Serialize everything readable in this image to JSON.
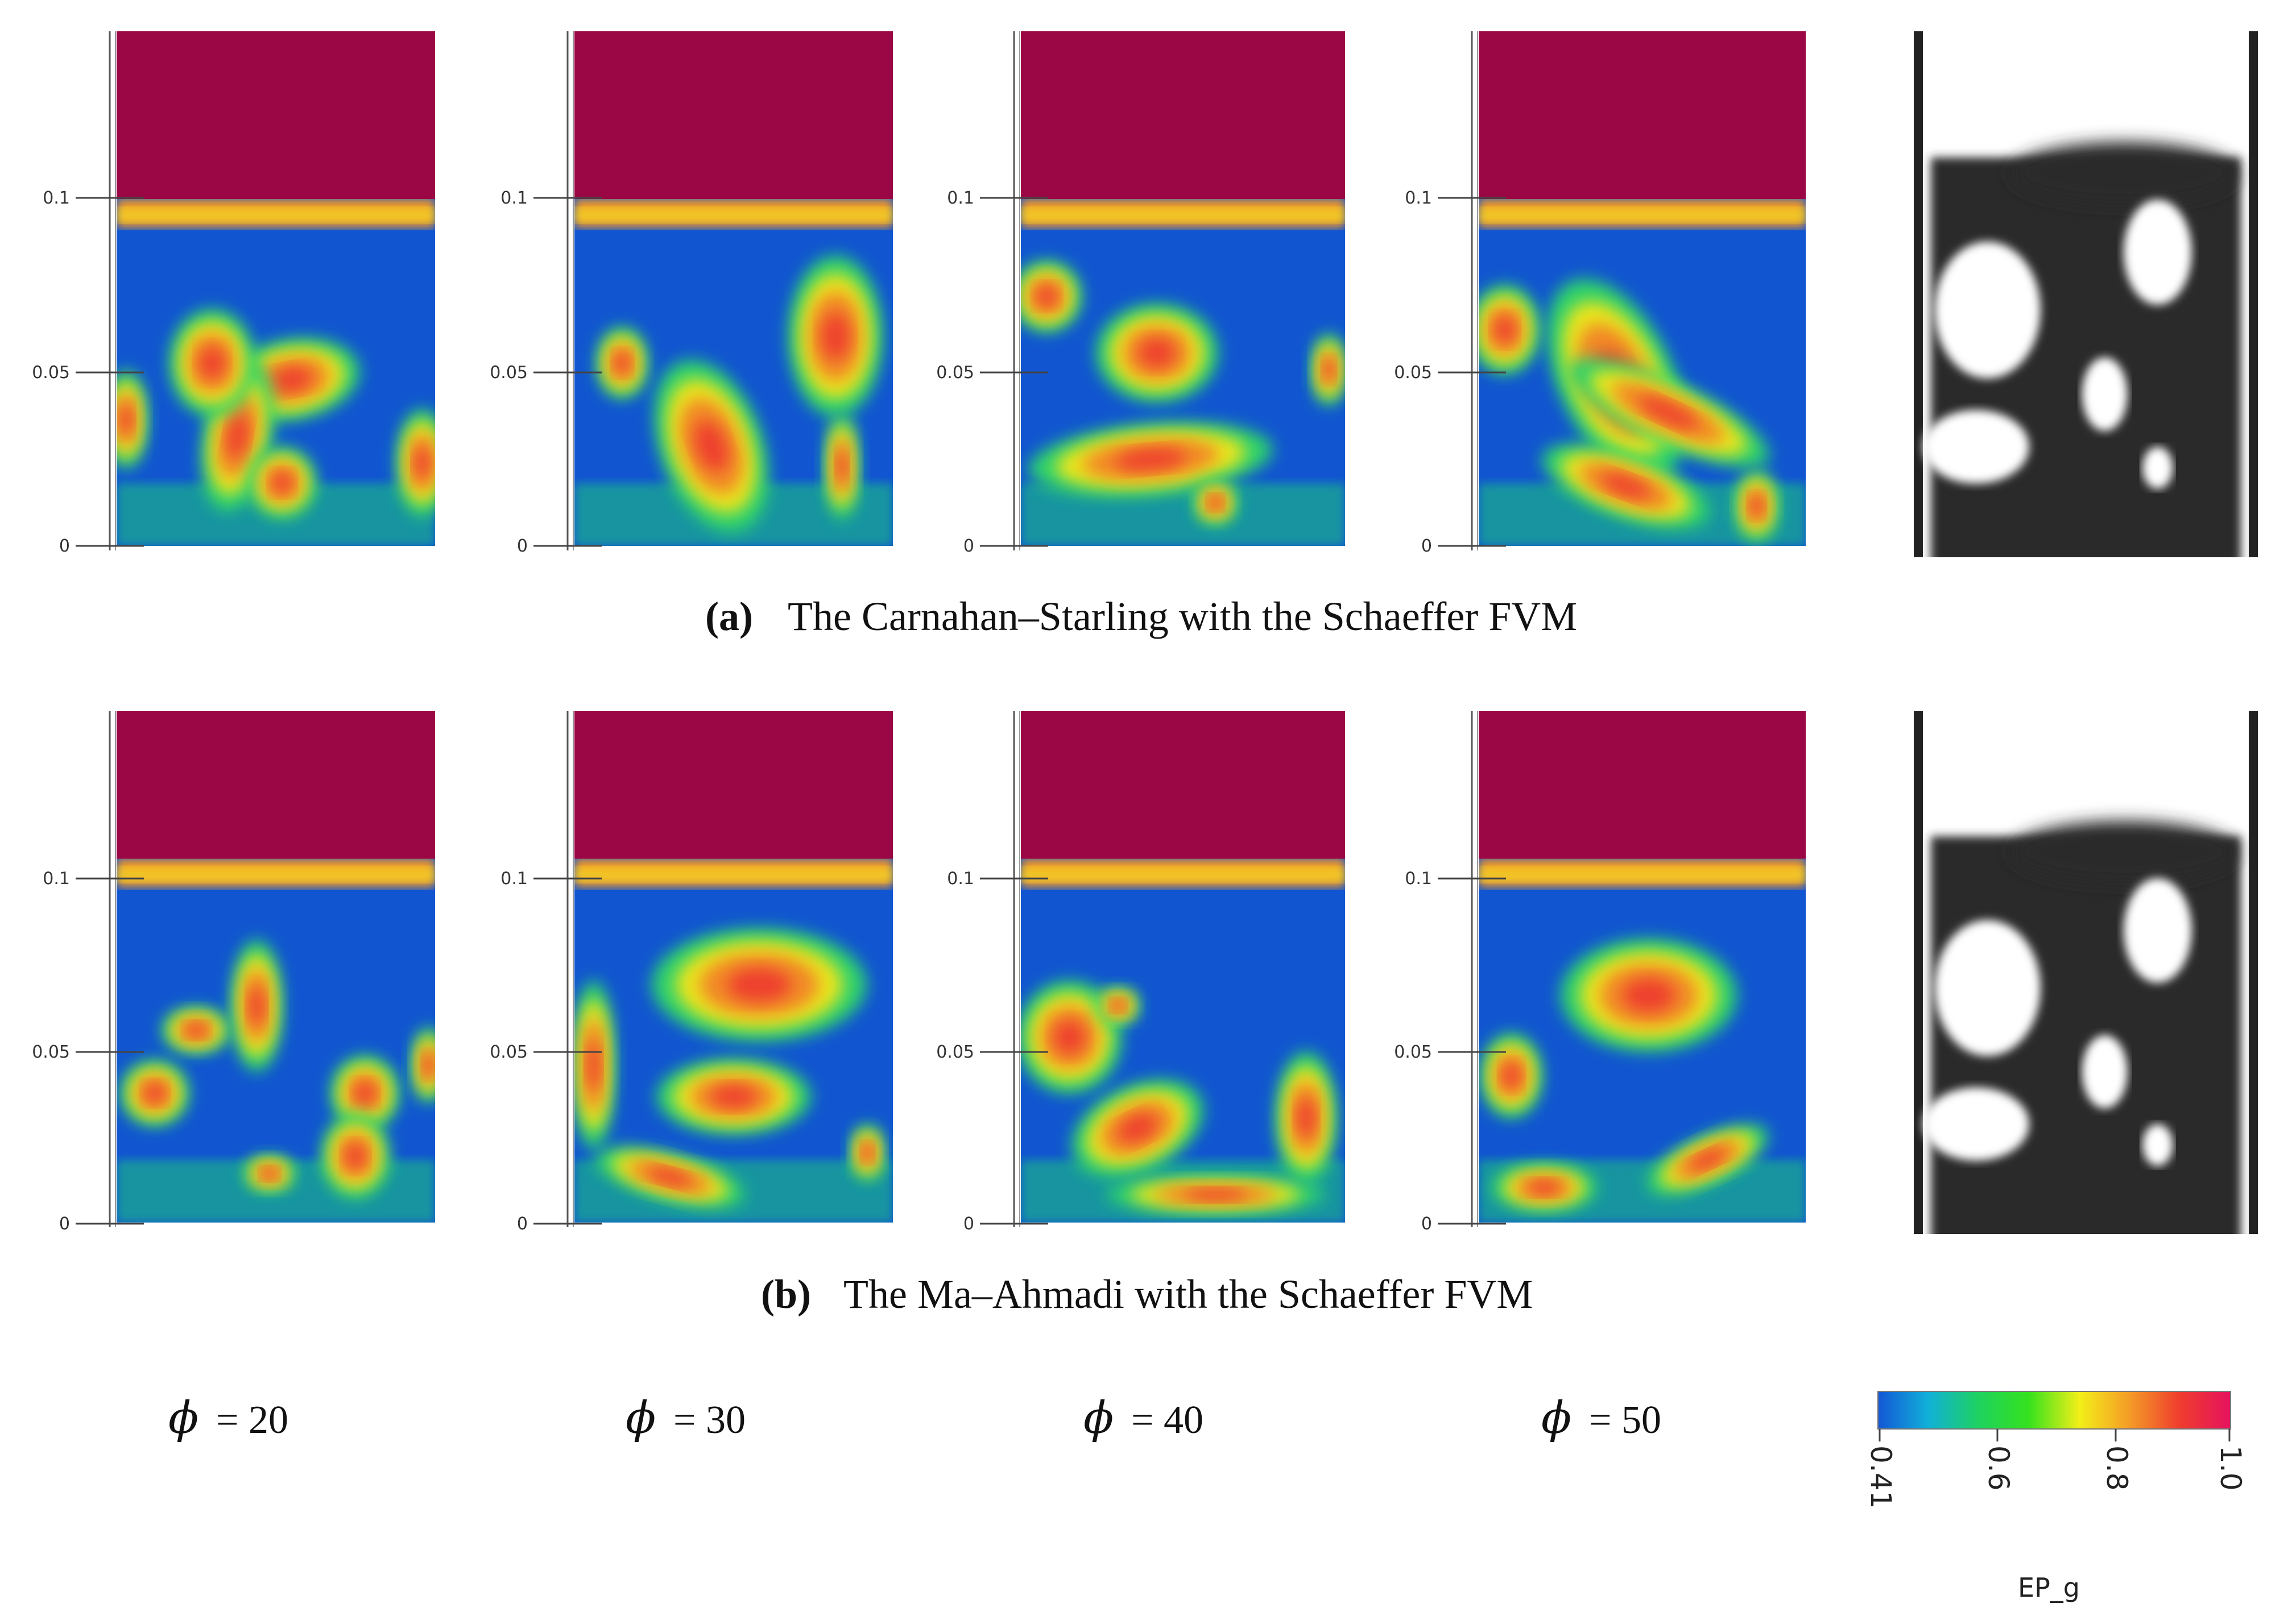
{
  "rows": [
    {
      "label": "(a)",
      "caption": "The Carnahan–Starling with the Schaeffer FVM",
      "axis_ticks": [
        "0",
        "0.05",
        "0.1"
      ]
    },
    {
      "label": "(b)",
      "caption": "The Ma–Ahmadi with the Schaeffer FVM",
      "axis_ticks": [
        "0",
        "0.05",
        "0.1"
      ]
    }
  ],
  "columns": [
    {
      "symbol": "ϕ",
      "value_text": "= 20"
    },
    {
      "symbol": "ϕ",
      "value_text": "= 30"
    },
    {
      "symbol": "ϕ",
      "value_text": "= 40"
    },
    {
      "symbol": "ϕ",
      "value_text": "= 50"
    }
  ],
  "colorbar": {
    "title": "EP_g",
    "ticks": [
      "0.41",
      "0.6",
      "0.8",
      "1.0"
    ],
    "min": 0.41,
    "max": 1.0,
    "colors": [
      "#1357d6",
      "#11b0d8",
      "#1ed25f",
      "#36e21d",
      "#f3ef19",
      "#f49b27",
      "#ef3c2e",
      "#e5125e"
    ]
  },
  "styling": {
    "freeboard_color": "#9b0745",
    "bed_base_color": "#1155d0",
    "experiment_background": "#2a2a2a",
    "experiment_bubble": "#ffffff"
  }
}
